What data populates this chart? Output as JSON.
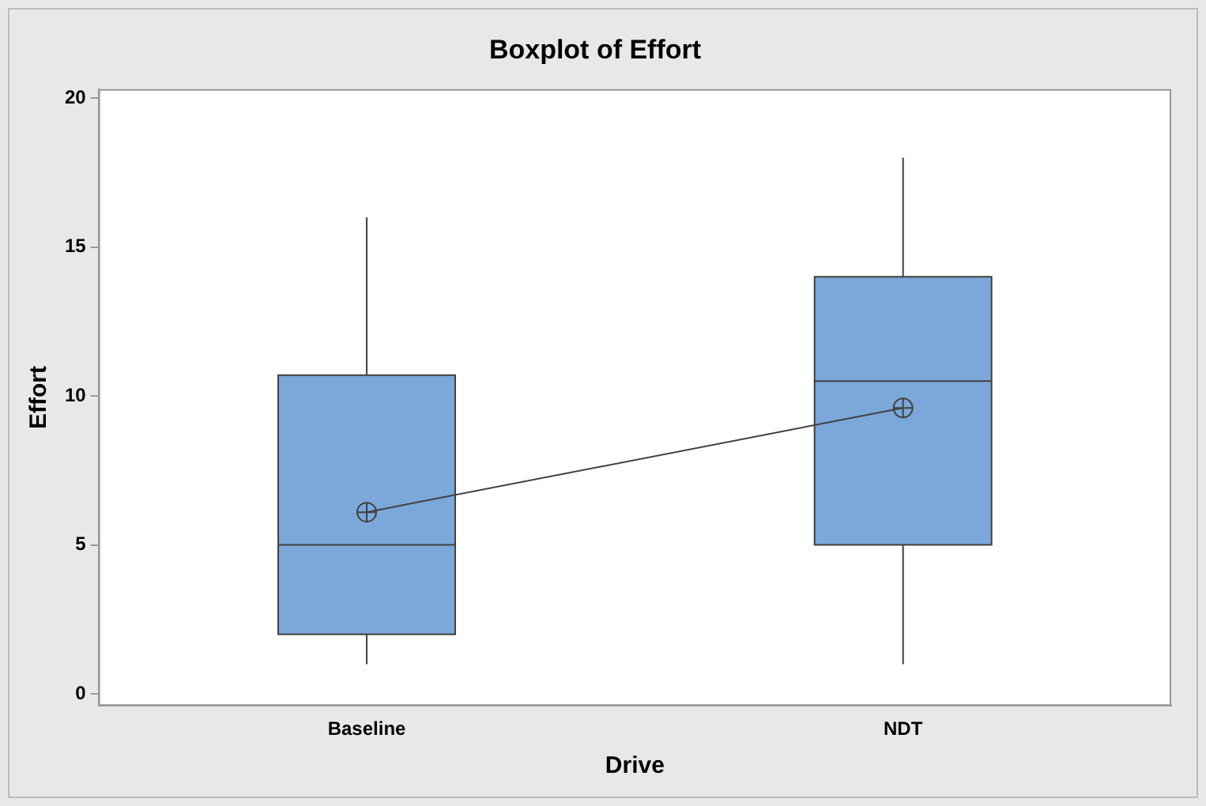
{
  "chart_data": {
    "type": "box",
    "title": "Boxplot of Effort",
    "xlabel": "Drive",
    "ylabel": "Effort",
    "categories": [
      "Baseline",
      "NDT"
    ],
    "boxes": [
      {
        "low": 1,
        "q1": 2,
        "median": 5,
        "q3": 10.7,
        "high": 16
      },
      {
        "low": 1,
        "q1": 5,
        "median": 10.5,
        "q3": 14,
        "high": 18
      }
    ],
    "color": "#7ba7d9",
    "series": [
      {
        "type": "line",
        "color": "#404040",
        "values": [
          6.1,
          9.6
        ],
        "marker": "circle"
      }
    ],
    "ylim": [
      -0.4,
      20.3
    ],
    "yticks": [
      0,
      5,
      10,
      15,
      20
    ],
    "grid": false,
    "legend": false
  }
}
